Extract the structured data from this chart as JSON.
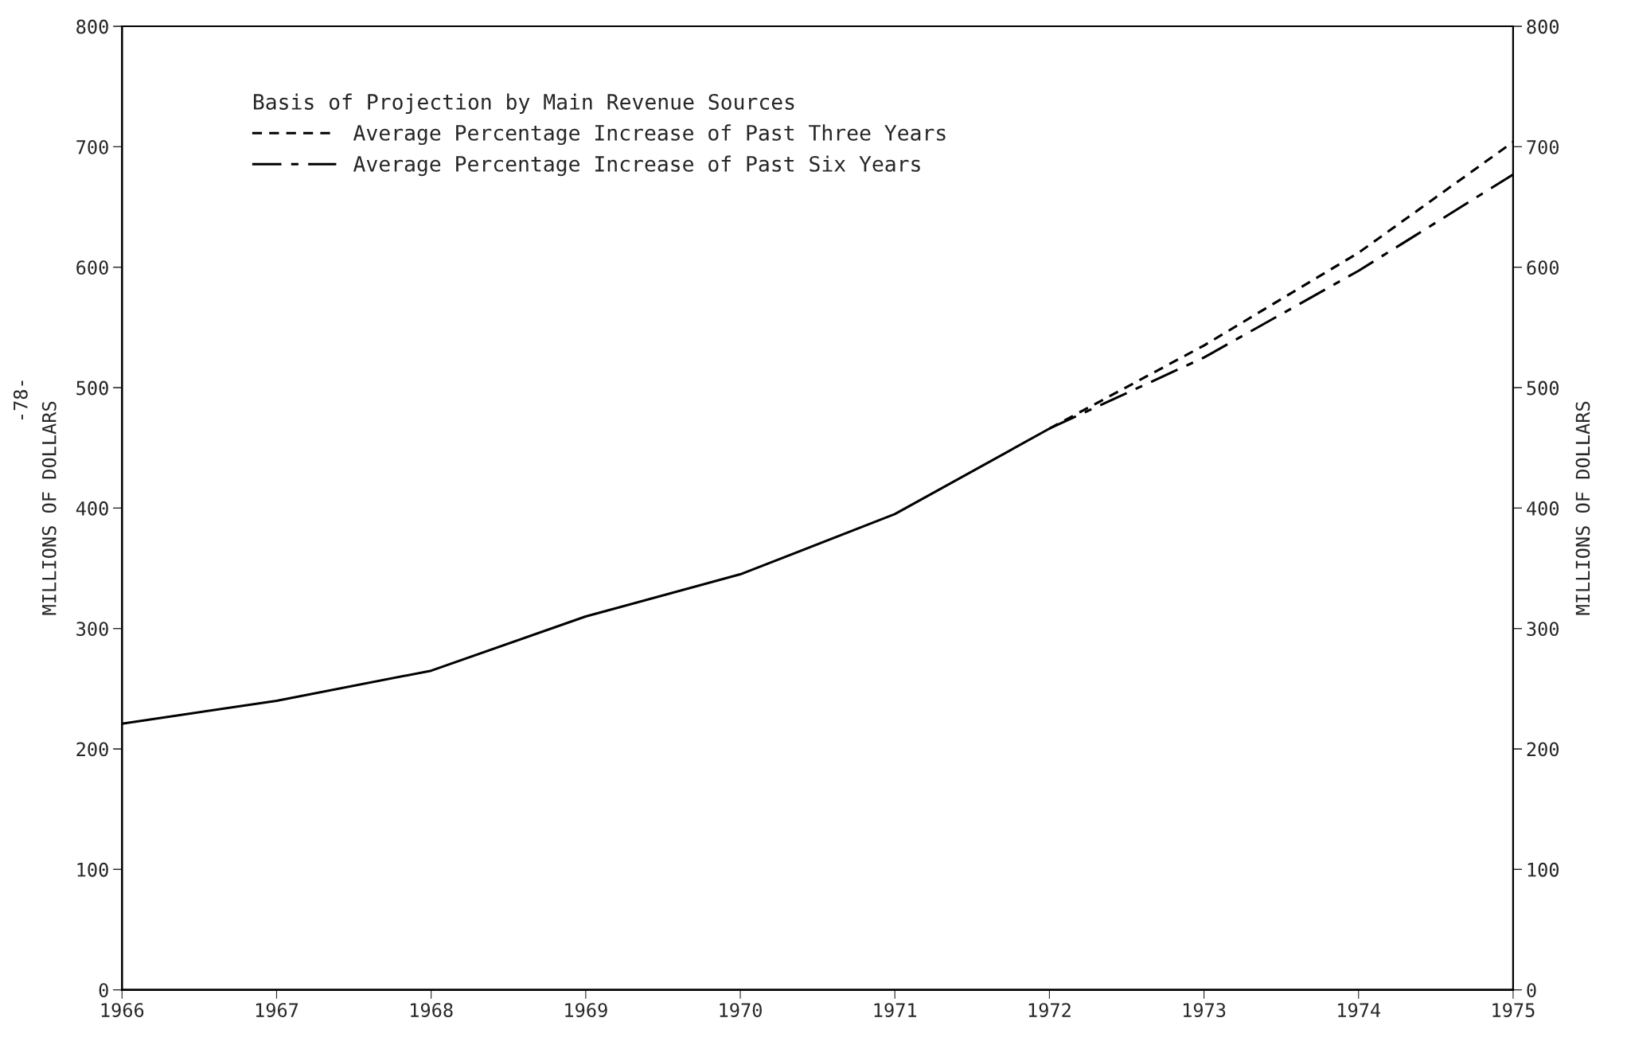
{
  "chart_data": {
    "type": "line",
    "ylabel": "MILLIONS OF DOLLARS",
    "y2label": "MILLIONS OF DOLLARS",
    "legend_title": "Basis of Projection by Main Revenue Sources",
    "xlim": [
      1966,
      1975
    ],
    "xticks": [
      1966,
      1967,
      1968,
      1969,
      1970,
      1971,
      1972,
      1973,
      1974,
      1975
    ],
    "ylim": [
      0,
      800
    ],
    "yticks": [
      0,
      100,
      200,
      300,
      400,
      500,
      600,
      700,
      800
    ],
    "y2lim": [
      0,
      800
    ],
    "y2ticks": [
      0,
      100,
      200,
      300,
      400,
      500,
      600,
      700,
      800
    ],
    "grid": false,
    "legend": "top left",
    "marker": "none",
    "annotations": [
      "-78-"
    ],
    "series": [
      {
        "color": "#000000",
        "line_style": "solid",
        "x": [
          1966,
          1967,
          1968,
          1969,
          1970,
          1971,
          1972
        ],
        "values": [
          221,
          240,
          265,
          310,
          345,
          395,
          466
        ]
      },
      {
        "name": "Average Percentage Increase of Past Three Years",
        "color": "#000000",
        "line_style": "dashed",
        "x": [
          1972,
          1973,
          1974,
          1975
        ],
        "values": [
          466,
          535,
          612,
          704
        ]
      },
      {
        "name": "Average Percentage Increase of Past Six Years",
        "color": "#000000",
        "line_style": "dashdot",
        "x": [
          1972,
          1973,
          1974,
          1975
        ],
        "values": [
          466,
          525,
          597,
          677
        ]
      }
    ]
  }
}
